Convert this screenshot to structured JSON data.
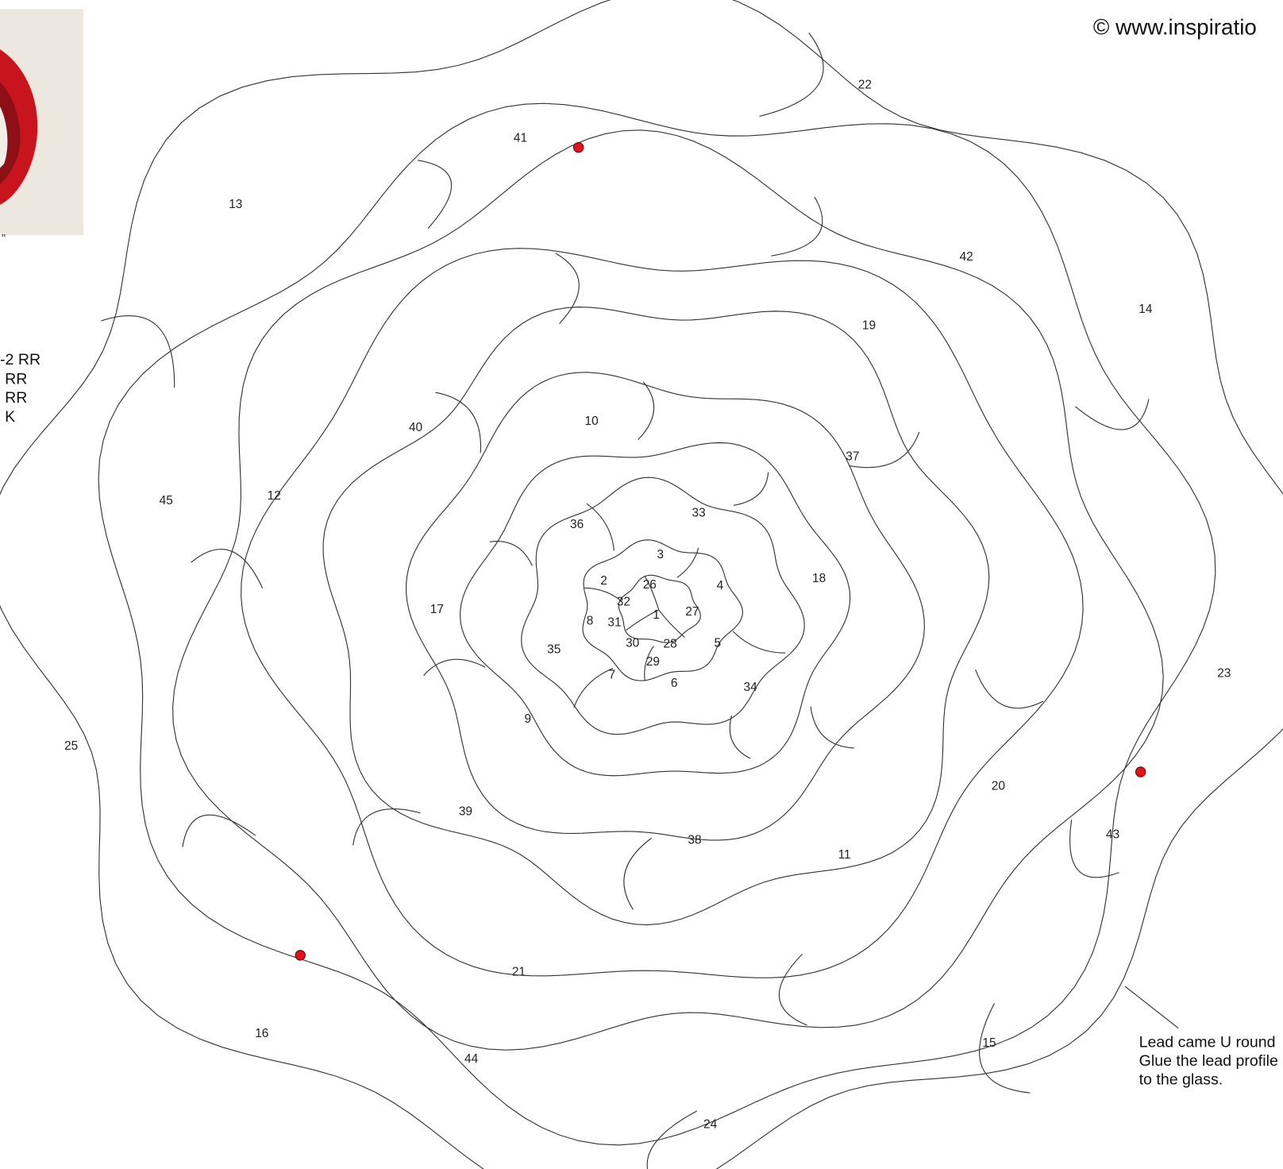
{
  "header": {
    "copyright": "©  www.inspiratio"
  },
  "side_text": [
    "-2 RR",
    "RR",
    "RR",
    "K"
  ],
  "note": [
    "Lead came U round",
    "Glue the lead profile",
    "to the glass."
  ],
  "pieces": [
    "22",
    "41",
    "13",
    "42",
    "14",
    "19",
    "40",
    "10",
    "37",
    "45",
    "12",
    "36",
    "33",
    "3",
    "18",
    "2",
    "26",
    "4",
    "17",
    "32",
    "1",
    "27",
    "8",
    "31",
    "30",
    "28",
    "5",
    "35",
    "29",
    "7",
    "6",
    "34",
    "23",
    "9",
    "25",
    "20",
    "39",
    "43",
    "38",
    "11",
    "21",
    "16",
    "15",
    "44",
    "24"
  ]
}
